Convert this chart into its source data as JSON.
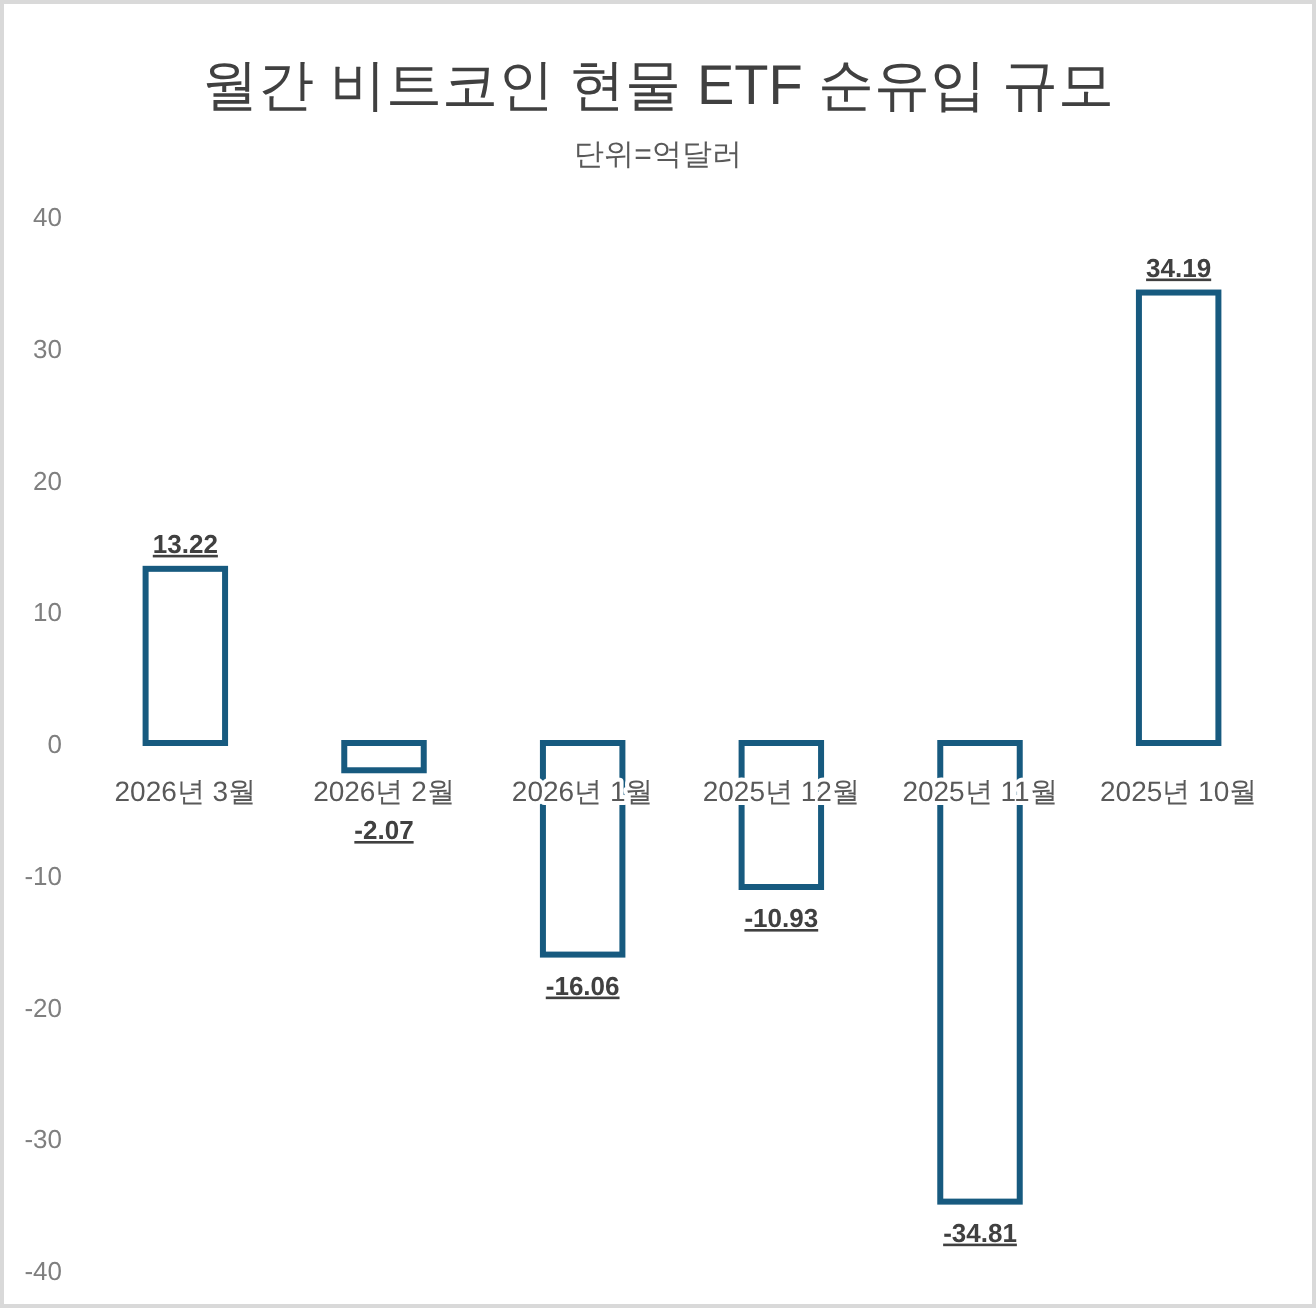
{
  "chart_data": {
    "type": "bar",
    "title": "월간 비트코인 현물 ETF 순유입 규모",
    "subtitle": "단위=억달러",
    "categories": [
      "2026년 3월",
      "2026년 2월",
      "2026년 1월",
      "2025년 12월",
      "2025년 11월",
      "2025년 10월"
    ],
    "values": [
      13.22,
      -2.07,
      -16.06,
      -10.93,
      -34.81,
      34.19
    ],
    "color": "#175a7f",
    "ylim": [
      -40,
      40
    ],
    "yticks": [
      -40,
      -30,
      -20,
      -10,
      0,
      10,
      20,
      30,
      40
    ],
    "data_labels": true
  }
}
